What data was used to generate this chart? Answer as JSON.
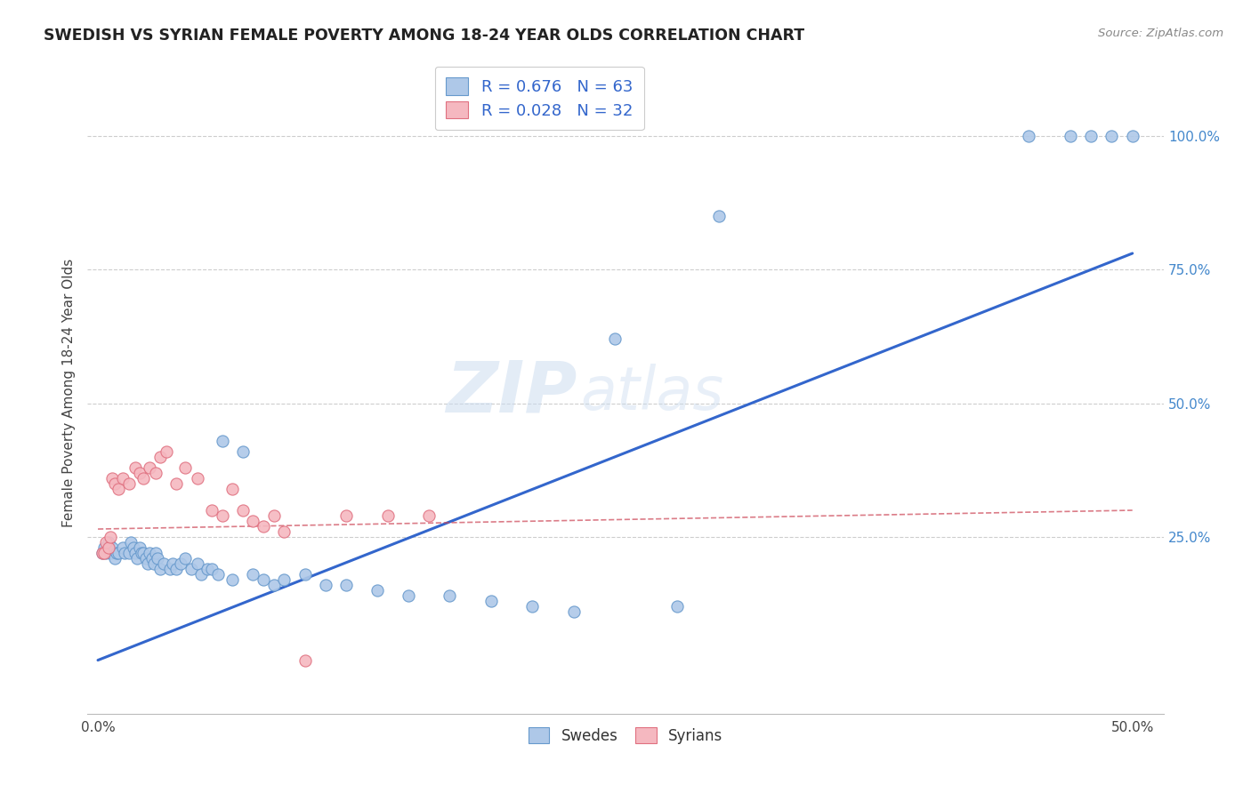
{
  "title": "SWEDISH VS SYRIAN FEMALE POVERTY AMONG 18-24 YEAR OLDS CORRELATION CHART",
  "source": "Source: ZipAtlas.com",
  "ylabel": "Female Poverty Among 18-24 Year Olds",
  "ytick_labels": [
    "25.0%",
    "50.0%",
    "75.0%",
    "100.0%"
  ],
  "ytick_values": [
    0.25,
    0.5,
    0.75,
    1.0
  ],
  "xtick_labels": [
    "0.0%",
    "50.0%"
  ],
  "xtick_values": [
    0.0,
    0.5
  ],
  "xlim": [
    -0.005,
    0.515
  ],
  "ylim": [
    -0.08,
    1.12
  ],
  "background_color": "#ffffff",
  "grid_color": "#c8c8c8",
  "watermark_zip": "ZIP",
  "watermark_atlas": "atlas",
  "blue_scatter_color": "#aec8e8",
  "blue_scatter_edge": "#6699cc",
  "pink_scatter_color": "#f5b8c0",
  "pink_scatter_edge": "#e07080",
  "blue_line_color": "#3366cc",
  "pink_line_color": "#cc4455",
  "swedes_label": "Swedes",
  "syrians_label": "Syrians",
  "right_tick_color": "#4488cc",
  "legend_r_color": "#3366cc",
  "blue_r": "R = 0.676",
  "blue_n": "N = 63",
  "pink_r": "R = 0.028",
  "pink_n": "N = 32",
  "swedes_x": [
    0.002,
    0.003,
    0.004,
    0.005,
    0.006,
    0.007,
    0.008,
    0.009,
    0.01,
    0.012,
    0.013,
    0.015,
    0.016,
    0.017,
    0.018,
    0.019,
    0.02,
    0.021,
    0.022,
    0.023,
    0.024,
    0.025,
    0.026,
    0.027,
    0.028,
    0.029,
    0.03,
    0.032,
    0.035,
    0.036,
    0.038,
    0.04,
    0.042,
    0.045,
    0.048,
    0.05,
    0.053,
    0.055,
    0.058,
    0.06,
    0.065,
    0.07,
    0.075,
    0.08,
    0.085,
    0.09,
    0.1,
    0.11,
    0.12,
    0.135,
    0.15,
    0.17,
    0.19,
    0.21,
    0.23,
    0.25,
    0.28,
    0.3,
    0.45,
    0.47,
    0.48,
    0.49,
    0.5
  ],
  "swedes_y": [
    0.22,
    0.23,
    0.22,
    0.24,
    0.22,
    0.23,
    0.21,
    0.22,
    0.22,
    0.23,
    0.22,
    0.22,
    0.24,
    0.23,
    0.22,
    0.21,
    0.23,
    0.22,
    0.22,
    0.21,
    0.2,
    0.22,
    0.21,
    0.2,
    0.22,
    0.21,
    0.19,
    0.2,
    0.19,
    0.2,
    0.19,
    0.2,
    0.21,
    0.19,
    0.2,
    0.18,
    0.19,
    0.19,
    0.18,
    0.43,
    0.17,
    0.41,
    0.18,
    0.17,
    0.16,
    0.17,
    0.18,
    0.16,
    0.16,
    0.15,
    0.14,
    0.14,
    0.13,
    0.12,
    0.11,
    0.62,
    0.12,
    0.85,
    1.0,
    1.0,
    1.0,
    1.0,
    1.0
  ],
  "syrians_x": [
    0.002,
    0.003,
    0.004,
    0.005,
    0.006,
    0.007,
    0.008,
    0.01,
    0.012,
    0.015,
    0.018,
    0.02,
    0.022,
    0.025,
    0.028,
    0.03,
    0.033,
    0.038,
    0.042,
    0.048,
    0.055,
    0.06,
    0.065,
    0.07,
    0.075,
    0.08,
    0.085,
    0.09,
    0.1,
    0.12,
    0.14,
    0.16
  ],
  "syrians_y": [
    0.22,
    0.22,
    0.24,
    0.23,
    0.25,
    0.36,
    0.35,
    0.34,
    0.36,
    0.35,
    0.38,
    0.37,
    0.36,
    0.38,
    0.37,
    0.4,
    0.41,
    0.35,
    0.38,
    0.36,
    0.3,
    0.29,
    0.34,
    0.3,
    0.28,
    0.27,
    0.29,
    0.26,
    0.02,
    0.29,
    0.29,
    0.29
  ],
  "blue_trend_x": [
    0.0,
    0.5
  ],
  "blue_trend_y": [
    0.02,
    0.78
  ],
  "pink_trend_x": [
    0.0,
    0.5
  ],
  "pink_trend_y": [
    0.265,
    0.3
  ]
}
